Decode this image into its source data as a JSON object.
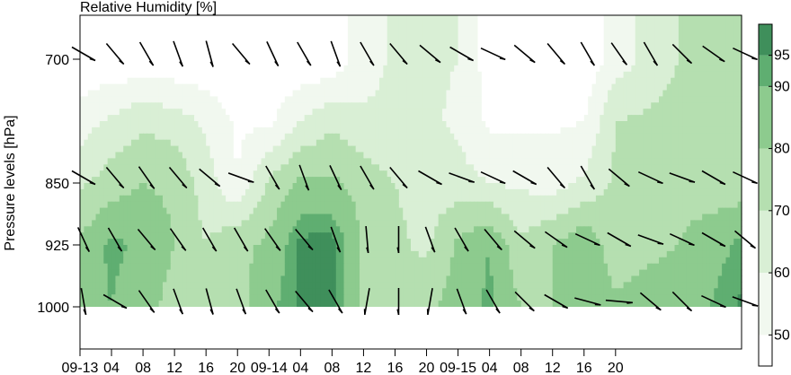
{
  "chart_data": {
    "type": "heatmap",
    "title": "Relative Humidity [%]",
    "ylabel": "Pressure levels [hPa]",
    "xlabel": "",
    "x_tick_labels": [
      "09-13",
      "04",
      "08",
      "12",
      "16",
      "20",
      "09-14",
      "04",
      "08",
      "12",
      "16",
      "20",
      "09-15",
      "04",
      "08",
      "12",
      "16",
      "20"
    ],
    "y_tick_labels": [
      "700",
      "850",
      "925",
      "1000"
    ],
    "pressure_levels": [
      700,
      850,
      925,
      1000
    ],
    "colorbar": {
      "ticks": [
        "50",
        "60",
        "70",
        "80",
        "90",
        "95"
      ],
      "levels": [
        45,
        50,
        60,
        70,
        80,
        90,
        95,
        100
      ],
      "colors": [
        "#ffffff",
        "#f1f8ef",
        "#d9efd5",
        "#b5dfb0",
        "#8dcb8e",
        "#5fae71",
        "#3f8f5b",
        "#2f6f45"
      ]
    },
    "hours": [
      0,
      4,
      8,
      12,
      16,
      20,
      24,
      28,
      32,
      36,
      40,
      44,
      48,
      52,
      56,
      60,
      64,
      68,
      72,
      76,
      80,
      84
    ],
    "rh_levels_hpa": [
      700,
      775,
      850,
      925,
      1000
    ],
    "rh": [
      [
        42,
        42,
        42,
        42,
        42,
        42,
        42,
        42,
        42,
        55,
        62,
        62,
        60,
        45,
        42,
        42,
        42,
        55,
        62,
        70,
        74,
        80
      ],
      [
        55,
        62,
        68,
        65,
        58,
        48,
        48,
        60,
        68,
        62,
        62,
        62,
        58,
        48,
        48,
        48,
        50,
        70,
        72,
        75,
        72,
        74
      ],
      [
        68,
        75,
        80,
        78,
        65,
        50,
        72,
        82,
        82,
        76,
        70,
        66,
        64,
        60,
        58,
        56,
        62,
        72,
        76,
        76,
        74,
        74
      ],
      [
        82,
        92,
        88,
        80,
        70,
        78,
        82,
        97,
        98,
        78,
        72,
        68,
        82,
        90,
        72,
        80,
        88,
        74,
        78,
        80,
        86,
        92
      ],
      [
        88,
        90,
        84,
        76,
        70,
        75,
        88,
        96,
        97,
        76,
        70,
        78,
        84,
        92,
        80,
        80,
        90,
        82,
        84,
        84,
        90,
        96
      ]
    ],
    "wind_barbs": [
      {
        "level": 700,
        "times": [
          0,
          4,
          8,
          12,
          16,
          20,
          24,
          28,
          32,
          36,
          40,
          44,
          48,
          52,
          56,
          60,
          64,
          68,
          72,
          76,
          80,
          84
        ],
        "angles_deg": [
          120,
          140,
          150,
          160,
          165,
          140,
          155,
          150,
          160,
          150,
          140,
          130,
          120,
          115,
          130,
          140,
          150,
          145,
          150,
          135,
          125,
          115
        ]
      },
      {
        "level": 850,
        "times": [
          0,
          4,
          8,
          12,
          16,
          20,
          24,
          28,
          32,
          36,
          40,
          44,
          48,
          52,
          56,
          60,
          64,
          68,
          72,
          76,
          80,
          84
        ],
        "angles_deg": [
          120,
          140,
          145,
          140,
          130,
          110,
          150,
          160,
          155,
          150,
          140,
          120,
          110,
          115,
          120,
          140,
          150,
          130,
          115,
          110,
          120,
          115
        ]
      },
      {
        "level": 925,
        "times": [
          0,
          4,
          8,
          12,
          16,
          20,
          24,
          28,
          32,
          36,
          40,
          44,
          48,
          52,
          56,
          60,
          64,
          68,
          72,
          76,
          80,
          84
        ],
        "angles_deg": [
          155,
          150,
          140,
          145,
          150,
          150,
          145,
          140,
          160,
          175,
          180,
          160,
          150,
          140,
          130,
          125,
          115,
          120,
          110,
          115,
          120,
          130
        ]
      },
      {
        "level": 1000,
        "times": [
          0,
          4,
          8,
          12,
          16,
          20,
          24,
          28,
          32,
          36,
          40,
          44,
          48,
          52,
          56,
          60,
          64,
          68,
          72,
          76,
          80,
          84
        ],
        "angles_deg": [
          170,
          120,
          145,
          160,
          165,
          160,
          150,
          140,
          150,
          190,
          180,
          190,
          160,
          150,
          135,
          120,
          105,
          95,
          130,
          135,
          115,
          110
        ]
      }
    ]
  }
}
